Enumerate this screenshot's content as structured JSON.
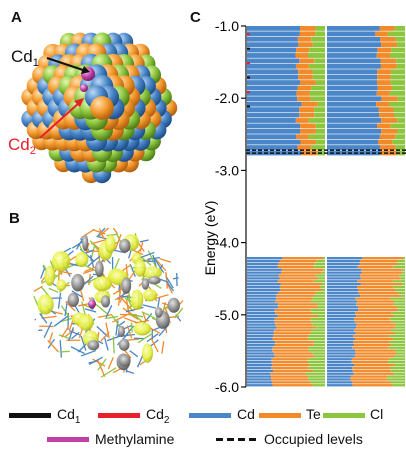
{
  "panels": {
    "a": {
      "label": "A",
      "annotations": [
        {
          "base": "Cd",
          "sub": "1",
          "color": "#111111"
        },
        {
          "base": "Cd",
          "sub": "2",
          "color": "#e8202a"
        }
      ]
    },
    "b": {
      "label": "B"
    },
    "c": {
      "label": "C"
    }
  },
  "chart_data": {
    "type": "bar",
    "ylabel": "Energy (eV)",
    "ylim": [
      -6.0,
      -1.0
    ],
    "yticks": [
      "-1.0",
      "-2.0",
      "-3.0",
      "-4.0",
      "-5.0",
      "-6.0"
    ],
    "bands": [
      {
        "name": "unoccupied",
        "range": [
          -2.75,
          -1.0
        ]
      },
      {
        "name": "occupied",
        "range": [
          -6.0,
          -4.2
        ]
      }
    ],
    "occupied_level_markers": [
      -2.72,
      -2.76
    ],
    "series": [
      {
        "name": "Cd1",
        "color": "#111111"
      },
      {
        "name": "Cd2",
        "color": "#e8202a"
      },
      {
        "name": "Cd",
        "color": "#4a86c8"
      },
      {
        "name": "Te",
        "color": "#f28a2a"
      },
      {
        "name": "Cl",
        "color": "#8cc63f"
      },
      {
        "name": "Methylamine",
        "color": "#c040a8"
      }
    ]
  },
  "legend": {
    "items": [
      {
        "label": "Cd",
        "sub": "1",
        "color": "#111111"
      },
      {
        "label": "Cd",
        "sub": "2",
        "color": "#e8202a"
      },
      {
        "label": "Cd",
        "sub": "",
        "color": "#4a86c8"
      },
      {
        "label": "Te",
        "sub": "",
        "color": "#f28a2a"
      },
      {
        "label": "Cl",
        "sub": "",
        "color": "#8cc63f"
      }
    ],
    "methylamine": {
      "label": "Methylamine",
      "color": "#c040a8"
    },
    "occupied": {
      "label": "Occupied levels"
    }
  }
}
